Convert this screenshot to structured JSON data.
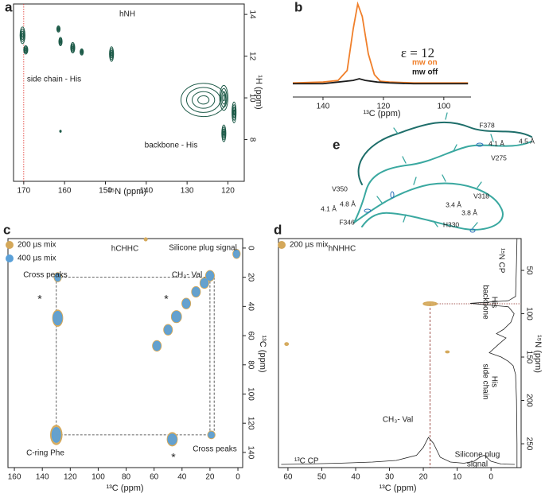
{
  "chart_data": [
    {
      "panel": "a",
      "type": "contour",
      "title": "hNH",
      "x_label": "¹⁵N (ppm)",
      "y_label": "¹H (ppm)",
      "xlim": [
        172.5,
        116
      ],
      "ylim": [
        6,
        14.5
      ],
      "xticks": [
        170,
        160,
        150,
        140,
        130,
        120
      ],
      "yticks": [
        8,
        10,
        12,
        14
      ],
      "contour_style": "lines",
      "guide_x": [
        170
      ],
      "guide_color": "#e0302a",
      "annotations": [
        "side chain - His",
        "backbone - His"
      ],
      "series": [
        {
          "color": "#1d5a48",
          "x": [
            170.3,
            169.5,
            161.5,
            161,
            158,
            155.8,
            148.5,
            161,
            126,
            121,
            121,
            118.5
          ],
          "y": [
            13.0,
            12.3,
            13.3,
            12.7,
            12.4,
            12.2,
            12.1,
            8.4,
            9.9,
            10.0,
            8.3,
            9.3
          ],
          "xwidth": [
            1.2,
            1,
            0.8,
            0.8,
            1,
            0.8,
            1,
            0.4,
            11,
            2,
            1,
            1
          ],
          "ywidth": [
            0.8,
            0.4,
            0.3,
            0.4,
            0.5,
            0.3,
            0.7,
            0.1,
            1.6,
            1.2,
            0.8,
            1
          ]
        }
      ]
    },
    {
      "panel": "b",
      "type": "line",
      "x_label": "¹³C (ppm)",
      "xlim": [
        150,
        91
      ],
      "ylim": [
        -12,
        100
      ],
      "xticks": [
        140,
        120,
        100
      ],
      "annotations": [
        "ε = 12"
      ],
      "series": [
        {
          "name": "mw on",
          "color": "#f07f2a",
          "x": [
            150,
            140,
            135,
            132,
            130,
            128.5,
            127,
            125,
            123,
            121,
            118,
            110,
            100,
            92
          ],
          "values": [
            5,
            6,
            8,
            20,
            70,
            100,
            85,
            40,
            15,
            7,
            6,
            5,
            5,
            5
          ]
        },
        {
          "name": "mw off",
          "color": "#1a1a1a",
          "x": [
            150,
            140,
            135,
            130,
            128,
            126,
            122,
            118,
            110,
            100,
            92
          ],
          "values": [
            4,
            4,
            6,
            8,
            10,
            8,
            6,
            5,
            4,
            4,
            4
          ]
        }
      ]
    },
    {
      "panel": "c",
      "type": "contour",
      "title": "hCHHC",
      "x_label": "¹³C (ppm)",
      "y_label": "¹³C (ppm)",
      "xlim": [
        164.6,
        -3.4
      ],
      "ylim": [
        150.4,
        -6.5
      ],
      "xticks": [
        160,
        140,
        120,
        100,
        80,
        60,
        40,
        20,
        0
      ],
      "yticks": [
        0,
        20,
        40,
        60,
        80,
        100,
        120,
        140
      ],
      "contour_style": "filled",
      "legend": "top-left",
      "guide_x": [
        130,
        20,
        17
      ],
      "guide_y": [
        20,
        128
      ],
      "guide_color": "#333333",
      "annotations": [
        "Silicone plug signal",
        "Cross peaks",
        "CH₃- Val",
        "C-ring Phe",
        "Cross peaks",
        "*",
        "*",
        "*"
      ],
      "series": [
        {
          "name": "200 µs mix",
          "color": "#d4a85a",
          "x": [
            129,
            129,
            130,
            47,
            20,
            19,
            1,
            58,
            50,
            44,
            37,
            30,
            24,
            66
          ],
          "y": [
            20,
            48,
            128,
            131,
            19,
            128,
            4,
            67,
            56,
            47,
            38,
            30,
            24,
            -6
          ],
          "xwidth": [
            5,
            7,
            8,
            7,
            6,
            5,
            5,
            6,
            6,
            7,
            6,
            6,
            6,
            2
          ],
          "ywidth": [
            6,
            11,
            13,
            9,
            7,
            5,
            6,
            7,
            7,
            8,
            7,
            7,
            7,
            2
          ]
        },
        {
          "name": "400 µs mix",
          "color": "#5aa0d8",
          "x": [
            129,
            129,
            130,
            47,
            20,
            19,
            1,
            58,
            50,
            44,
            37,
            30,
            24
          ],
          "y": [
            20,
            48,
            128,
            131,
            19,
            128,
            4,
            67,
            56,
            47,
            38,
            30,
            24
          ],
          "xwidth": [
            4,
            6,
            6,
            6,
            5,
            4,
            4,
            5,
            5,
            6,
            5,
            5,
            5
          ],
          "ywidth": [
            5,
            9,
            10,
            7,
            6,
            4,
            5,
            6,
            6,
            7,
            6,
            6,
            6
          ]
        }
      ]
    },
    {
      "panel": "d",
      "type": "contour",
      "title": "hNHHC",
      "x_label": "¹³C (ppm)",
      "y_label": "¹⁵N (ppm)",
      "xlim": [
        62.8,
        -8.9
      ],
      "ylim": [
        277.5,
        13.3
      ],
      "xticks": [
        60,
        50,
        40,
        30,
        20,
        10,
        0
      ],
      "yticks": [
        50,
        100,
        150,
        200,
        250
      ],
      "contour_style": "filled",
      "legend": "top-left",
      "guide_x": [
        18
      ],
      "guide_y": [
        88.5
      ],
      "guide_color": "#8a2a20",
      "annotations": [
        "CH₃- Val",
        "Silicone plug",
        "signal",
        "backbone",
        "His",
        "side chain",
        "His"
      ],
      "series": [
        {
          "name": "200 µs mix",
          "color": "#d4a85a",
          "x": [
            18,
            60.4,
            12.9
          ],
          "y": [
            88.5,
            135,
            144
          ],
          "xwidth": [
            4,
            1,
            1
          ],
          "ywidth": [
            4,
            3,
            2
          ]
        }
      ],
      "trace_lim": [
        0,
        100
      ],
      "traces": [
        {
          "name": "¹³C CP",
          "x": [
            62,
            55,
            45,
            35,
            28,
            22,
            20,
            18.5,
            17,
            15,
            12,
            8,
            5,
            3,
            2,
            0,
            -3,
            -7
          ],
          "values": [
            2,
            3,
            5,
            8,
            12,
            25,
            45,
            70,
            55,
            20,
            8,
            5,
            10,
            22,
            25,
            10,
            3,
            2
          ]
        },
        {
          "name": "¹⁵N CP",
          "y": [
            13,
            40,
            80,
            85,
            88,
            92,
            100,
            110,
            118,
            123,
            128,
            135,
            145,
            150,
            155,
            160,
            170,
            200,
            250,
            277
          ],
          "values": [
            2,
            3,
            5,
            20,
            100,
            20,
            8,
            15,
            30,
            45,
            25,
            40,
            60,
            35,
            20,
            10,
            5,
            3,
            2,
            2
          ]
        }
      ]
    }
  ],
  "diagram": {
    "panel": "e",
    "labels": [
      "F378",
      "4.5 Å",
      "4.1 Å",
      "V275",
      "V350",
      "4.8 Å",
      "4.1 Å",
      "F346",
      "V318",
      "3.4 Å",
      "3.8 Å",
      "H330"
    ]
  }
}
